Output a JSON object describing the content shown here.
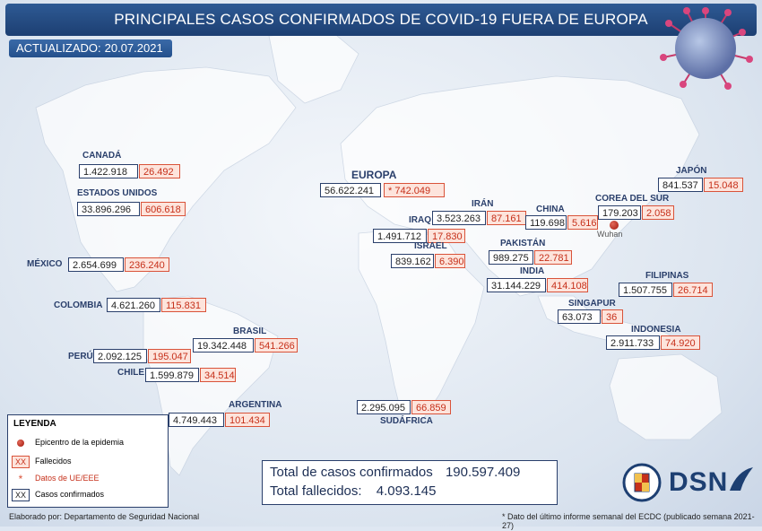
{
  "header": {
    "title": "PRINCIPALES CASOS CONFIRMADOS DE COVID-19 FUERA DE EUROPA"
  },
  "updated": {
    "label": "ACTUALIZADO:",
    "date": "20.07.2021"
  },
  "regions": {
    "canada": {
      "name": "CANADÁ",
      "confirmed": "1.422.918",
      "deaths": "26.492"
    },
    "usa": {
      "name": "ESTADOS UNIDOS",
      "confirmed": "33.896.296",
      "deaths": "606.618"
    },
    "mexico": {
      "name": "MÉXICO",
      "confirmed": "2.654.699",
      "deaths": "236.240"
    },
    "colombia": {
      "name": "COLOMBIA",
      "confirmed": "4.621.260",
      "deaths": "115.831"
    },
    "brasil": {
      "name": "BRASIL",
      "confirmed": "19.342.448",
      "deaths": "541.266"
    },
    "peru": {
      "name": "PERÚ",
      "confirmed": "2.092.125",
      "deaths": "195.047"
    },
    "chile": {
      "name": "CHILE",
      "confirmed": "1.599.879",
      "deaths": "34.514"
    },
    "argentina": {
      "name": "ARGENTINA",
      "confirmed": "4.749.443",
      "deaths": "101.434"
    },
    "europa": {
      "name": "EUROPA",
      "confirmed": "56.622.241",
      "deaths": "* 742.049"
    },
    "iran": {
      "name": "IRÁN",
      "confirmed": "3.523.263",
      "deaths": "87.161"
    },
    "iraq": {
      "name": "IRAQ",
      "confirmed": "1.491.712",
      "deaths": "17.830"
    },
    "israel": {
      "name": "ISRAEL",
      "confirmed": "839.162",
      "deaths": "6.390"
    },
    "pakistan": {
      "name": "PAKISTÁN",
      "confirmed": "989.275",
      "deaths": "22.781"
    },
    "india": {
      "name": "INDIA",
      "confirmed": "31.144.229",
      "deaths": "414.108"
    },
    "china": {
      "name": "CHINA",
      "confirmed": "119.698",
      "deaths": "5.616"
    },
    "corea": {
      "name": "COREA DEL SUR",
      "confirmed": "179.203",
      "deaths": "2.058"
    },
    "japon": {
      "name": "JAPÓN",
      "confirmed": "841.537",
      "deaths": "15.048"
    },
    "filipinas": {
      "name": "FILIPINAS",
      "confirmed": "1.507.755",
      "deaths": "26.714"
    },
    "singapur": {
      "name": "SINGAPUR",
      "confirmed": "63.073",
      "deaths": "36"
    },
    "indonesia": {
      "name": "INDONESIA",
      "confirmed": "2.911.733",
      "deaths": "74.920"
    },
    "sudafrica": {
      "name": "SUDÁFRICA",
      "confirmed": "2.295.095",
      "deaths": "66.859"
    }
  },
  "epicenter": {
    "label": "Wuhan"
  },
  "legend": {
    "title": "LEYENDA",
    "items": [
      {
        "symbol": "",
        "label": "Epicentro de la epidemia"
      },
      {
        "symbol": "XX",
        "label": "Fallecidos"
      },
      {
        "symbol": "*",
        "label": "Datos de UE/EEE"
      },
      {
        "symbol": "XX",
        "label": "Casos confirmados"
      }
    ]
  },
  "totals": {
    "confirmed_label": "Total de casos confirmados",
    "confirmed_value": "190.597.409",
    "deaths_label": "Total fallecidos:",
    "deaths_value": "4.093.145"
  },
  "logo": {
    "text": "DSN"
  },
  "footer": {
    "left": "Elaborado por: Departamento de Seguridad Nacional",
    "right": "* Dato del último informe semanal del ECDC (publicado semana 2021-27)"
  },
  "colors": {
    "header": "#1d3f72",
    "deaths": "#c6301a",
    "confirmed_border": "#2a3f6b",
    "epicenter": "#a0150a"
  }
}
